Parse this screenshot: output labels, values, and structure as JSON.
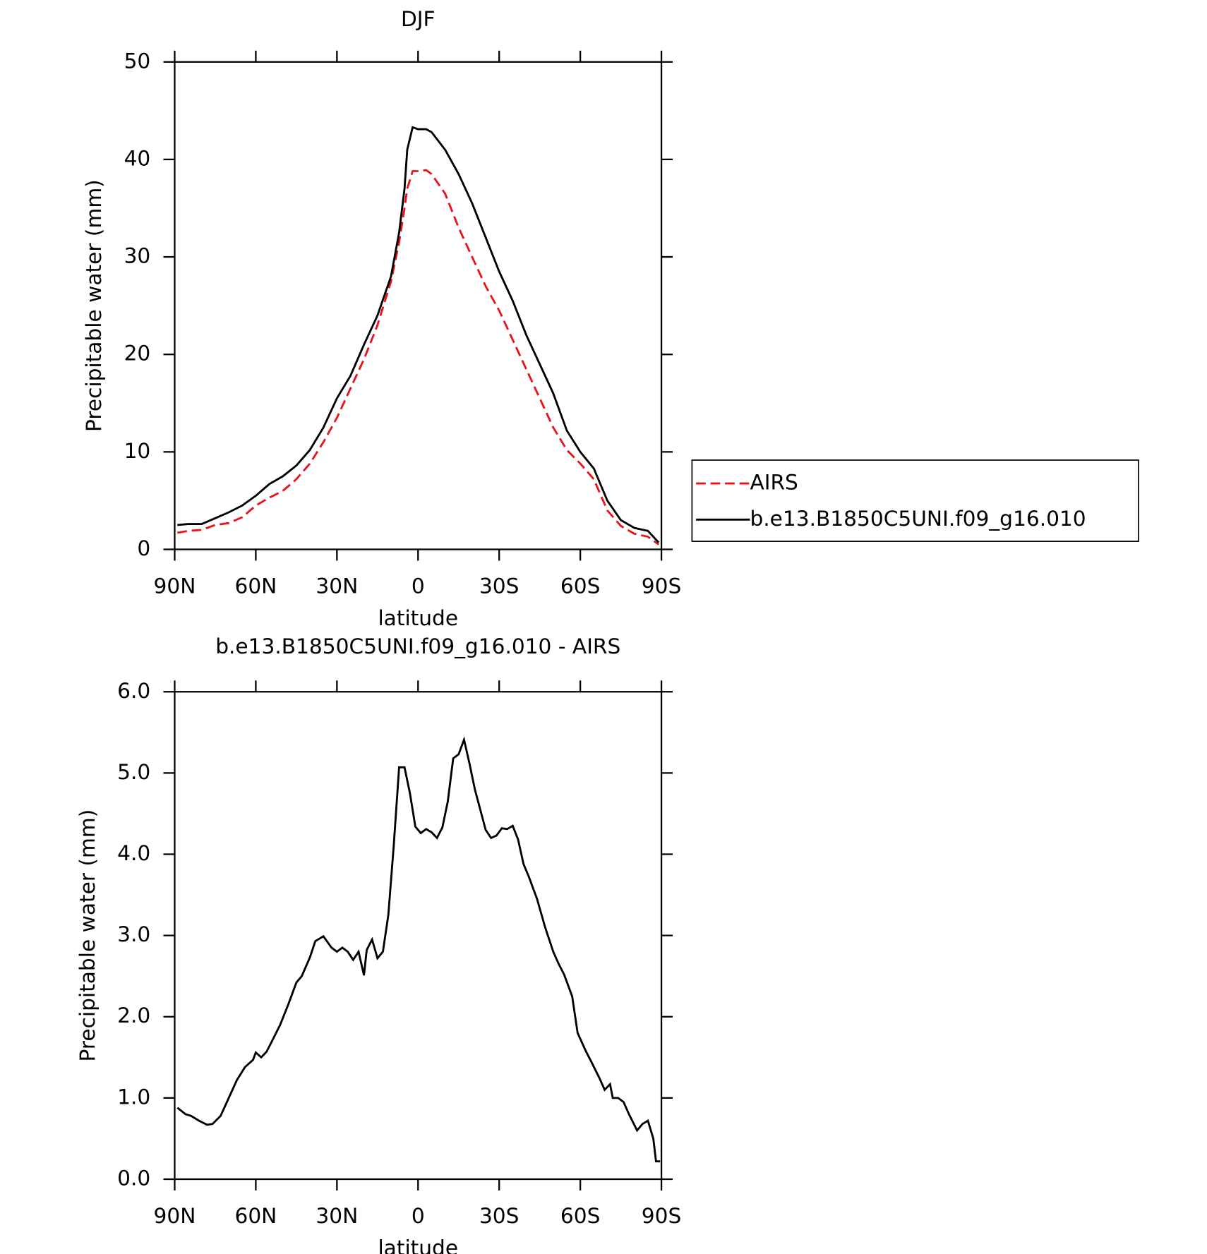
{
  "chart_data": [
    {
      "type": "line",
      "title": "DJF",
      "x_label": "latitude",
      "y_label": "Precipitable water (mm)",
      "xlim": [
        90,
        -90
      ],
      "ylim": [
        0,
        50
      ],
      "xticks": [
        {
          "value": 90,
          "label": "90N"
        },
        {
          "value": 60,
          "label": "60N"
        },
        {
          "value": 30,
          "label": "30N"
        },
        0,
        {
          "value": -30,
          "label": "30S"
        },
        {
          "value": -60,
          "label": "60S"
        },
        {
          "value": -90,
          "label": "90S"
        }
      ],
      "yticks": [
        0,
        10,
        20,
        30,
        40,
        50
      ],
      "legend": "outside right",
      "x": [
        89,
        85,
        80,
        75,
        70,
        65,
        60,
        55,
        50,
        45,
        40,
        35,
        30,
        25,
        20,
        15,
        10,
        7,
        5,
        4,
        2,
        0,
        -3,
        -5,
        -10,
        -15,
        -20,
        -25,
        -30,
        -35,
        -40,
        -45,
        -50,
        -55,
        -60,
        -65,
        -70,
        -75,
        -80,
        -85,
        -89
      ],
      "series": [
        {
          "name": "AIRS",
          "color": "#e8141c",
          "style": "dashed",
          "values": [
            1.7,
            1.9,
            2.0,
            2.5,
            2.7,
            3.3,
            4.5,
            5.3,
            6.0,
            7.2,
            8.8,
            11,
            13.5,
            16.5,
            19.5,
            23,
            27.5,
            31.5,
            35,
            37,
            38.8,
            38.8,
            38.9,
            38.5,
            36.5,
            33,
            30,
            27,
            24.5,
            21.5,
            18.5,
            15.5,
            12.5,
            10.2,
            8.8,
            7.2,
            4.0,
            2.4,
            1.6,
            1.3,
            0.5
          ]
        },
        {
          "name": "b.e13.B1850C5UNI.f09_g16.010",
          "color": "#000000",
          "style": "solid",
          "values": [
            2.5,
            2.6,
            2.6,
            3.2,
            3.8,
            4.5,
            5.5,
            6.7,
            7.5,
            8.6,
            10.2,
            12.5,
            15.5,
            17.8,
            21.0,
            24.0,
            28.0,
            32.5,
            37,
            41,
            43.3,
            43.1,
            43.1,
            42.8,
            41,
            38.5,
            35.5,
            32,
            28.5,
            25.5,
            22,
            19,
            16,
            12.2,
            10,
            8.3,
            5.0,
            3.0,
            2.2,
            1.9,
            0.7
          ]
        }
      ]
    },
    {
      "type": "line",
      "title": "b.e13.B1850C5UNI.f09_g16.010 - AIRS",
      "x_label": "latitude",
      "y_label": "Precipitable water (mm)",
      "xlim": [
        90,
        -90
      ],
      "ylim": [
        0,
        6
      ],
      "xticks": [
        {
          "value": 90,
          "label": "90N"
        },
        {
          "value": 60,
          "label": "60N"
        },
        {
          "value": 30,
          "label": "30N"
        },
        0,
        {
          "value": -30,
          "label": "30S"
        },
        {
          "value": -60,
          "label": "60S"
        },
        {
          "value": -90,
          "label": "90S"
        }
      ],
      "yticks": [
        {
          "value": 0,
          "label": "0.0"
        },
        {
          "value": 1,
          "label": "1.0"
        },
        {
          "value": 2,
          "label": "2.0"
        },
        {
          "value": 3,
          "label": "3.0"
        },
        {
          "value": 4,
          "label": "4.0"
        },
        {
          "value": 5,
          "label": "5.0"
        },
        {
          "value": 6,
          "label": "6.0"
        }
      ],
      "x": [
        89,
        86,
        84,
        81,
        78,
        76,
        73,
        70,
        67,
        64,
        61,
        60,
        58,
        56,
        54,
        51,
        48,
        45,
        43,
        40,
        38,
        35,
        32,
        30,
        28,
        26,
        24,
        22,
        20,
        19,
        17,
        15,
        13,
        11,
        9,
        7,
        5,
        3,
        1,
        -1,
        -3,
        -5,
        -7,
        -9,
        -11,
        -13,
        -15,
        -17,
        -19,
        -21,
        -23,
        -25,
        -27,
        -29,
        -31,
        -33,
        -35,
        -37,
        -39,
        -41,
        -44,
        -47,
        -50,
        -52,
        -54,
        -57,
        -59,
        -62,
        -64,
        -67,
        -69,
        -71,
        -72,
        -74,
        -76,
        -78,
        -81,
        -83,
        -85,
        -87,
        -88,
        -89.5
      ],
      "series": [
        {
          "name": "b.e13.B1850C5UNI.f09_g16.010 - AIRS",
          "color": "#000000",
          "style": "solid",
          "values": [
            0.88,
            0.8,
            0.78,
            0.72,
            0.67,
            0.68,
            0.78,
            1.0,
            1.22,
            1.38,
            1.47,
            1.56,
            1.5,
            1.57,
            1.7,
            1.9,
            2.15,
            2.42,
            2.5,
            2.73,
            2.93,
            2.99,
            2.85,
            2.8,
            2.85,
            2.8,
            2.7,
            2.8,
            2.51,
            2.82,
            2.95,
            2.72,
            2.8,
            3.25,
            4.1,
            5.07,
            5.07,
            4.75,
            4.34,
            4.26,
            4.31,
            4.27,
            4.2,
            4.33,
            4.65,
            5.18,
            5.23,
            5.41,
            5.12,
            4.8,
            4.55,
            4.3,
            4.2,
            4.23,
            4.32,
            4.31,
            4.35,
            4.18,
            3.88,
            3.72,
            3.45,
            3.1,
            2.8,
            2.65,
            2.52,
            2.25,
            1.8,
            1.58,
            1.45,
            1.25,
            1.1,
            1.17,
            1.0,
            1.0,
            0.95,
            0.8,
            0.6,
            0.68,
            0.72,
            0.5,
            0.22,
            0.22
          ]
        }
      ]
    }
  ]
}
